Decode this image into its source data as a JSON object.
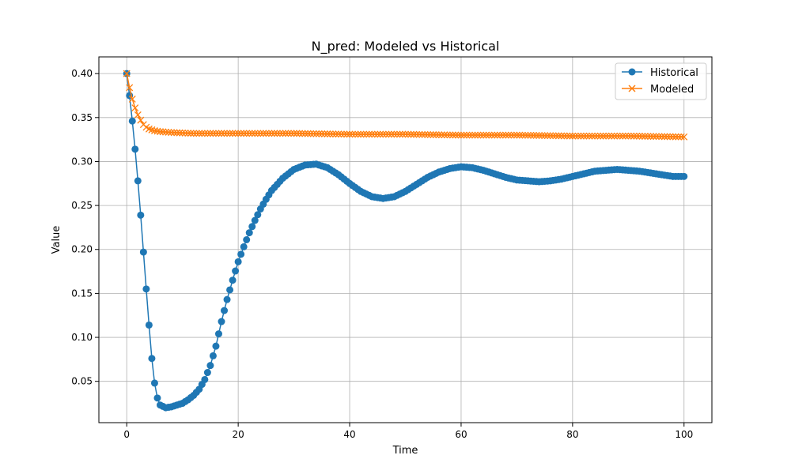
{
  "chart_data": {
    "type": "line",
    "title": "N_pred: Modeled vs Historical",
    "xlabel": "Time",
    "ylabel": "Value",
    "xlim": [
      -5,
      105
    ],
    "ylim": [
      0.003,
      0.419
    ],
    "xticks": [
      0,
      20,
      40,
      60,
      80,
      100
    ],
    "xtick_labels": [
      "0",
      "20",
      "40",
      "60",
      "80",
      "100"
    ],
    "yticks": [
      0.05,
      0.1,
      0.15,
      0.2,
      0.25,
      0.3,
      0.35,
      0.4
    ],
    "ytick_labels": [
      "0.05",
      "0.10",
      "0.15",
      "0.20",
      "0.25",
      "0.30",
      "0.35",
      "0.40"
    ],
    "grid": true,
    "legend_position": "top-right",
    "sample_step": 0.5,
    "series": [
      {
        "name": "Historical",
        "color": "#1f77b4",
        "marker": "circle",
        "anchor_points": [
          [
            0,
            0.4
          ],
          [
            0.5,
            0.375
          ],
          [
            1,
            0.346
          ],
          [
            1.5,
            0.314
          ],
          [
            2,
            0.278
          ],
          [
            2.5,
            0.239
          ],
          [
            3,
            0.197
          ],
          [
            3.5,
            0.155
          ],
          [
            4,
            0.114
          ],
          [
            4.5,
            0.076
          ],
          [
            5,
            0.048
          ],
          [
            5.5,
            0.031
          ],
          [
            6,
            0.023
          ],
          [
            7,
            0.02
          ],
          [
            8,
            0.021
          ],
          [
            9,
            0.023
          ],
          [
            10,
            0.025
          ],
          [
            11,
            0.029
          ],
          [
            12,
            0.034
          ],
          [
            13,
            0.041
          ],
          [
            14,
            0.052
          ],
          [
            15,
            0.068
          ],
          [
            16,
            0.09
          ],
          [
            17,
            0.118
          ],
          [
            18,
            0.143
          ],
          [
            19,
            0.165
          ],
          [
            20,
            0.186
          ],
          [
            21,
            0.203
          ],
          [
            22,
            0.219
          ],
          [
            23,
            0.233
          ],
          [
            24,
            0.246
          ],
          [
            25,
            0.257
          ],
          [
            26,
            0.267
          ],
          [
            28,
            0.281
          ],
          [
            30,
            0.291
          ],
          [
            32,
            0.296
          ],
          [
            34,
            0.297
          ],
          [
            36,
            0.293
          ],
          [
            38,
            0.285
          ],
          [
            40,
            0.275
          ],
          [
            42,
            0.266
          ],
          [
            44,
            0.26
          ],
          [
            46,
            0.258
          ],
          [
            48,
            0.26
          ],
          [
            50,
            0.266
          ],
          [
            52,
            0.274
          ],
          [
            54,
            0.282
          ],
          [
            56,
            0.288
          ],
          [
            58,
            0.292
          ],
          [
            60,
            0.294
          ],
          [
            62,
            0.293
          ],
          [
            64,
            0.29
          ],
          [
            66,
            0.286
          ],
          [
            68,
            0.282
          ],
          [
            70,
            0.279
          ],
          [
            72,
            0.278
          ],
          [
            74,
            0.277
          ],
          [
            76,
            0.278
          ],
          [
            78,
            0.28
          ],
          [
            80,
            0.283
          ],
          [
            82,
            0.286
          ],
          [
            84,
            0.289
          ],
          [
            86,
            0.29
          ],
          [
            88,
            0.291
          ],
          [
            90,
            0.29
          ],
          [
            92,
            0.289
          ],
          [
            94,
            0.287
          ],
          [
            96,
            0.285
          ],
          [
            98,
            0.283
          ],
          [
            100,
            0.283
          ]
        ]
      },
      {
        "name": "Modeled",
        "color": "#ff7f0e",
        "marker": "x",
        "anchor_points": [
          [
            0,
            0.4
          ],
          [
            0.5,
            0.384
          ],
          [
            1,
            0.371
          ],
          [
            1.5,
            0.361
          ],
          [
            2,
            0.353
          ],
          [
            2.5,
            0.347
          ],
          [
            3,
            0.342
          ],
          [
            3.5,
            0.339
          ],
          [
            4,
            0.337
          ],
          [
            5,
            0.335
          ],
          [
            6,
            0.334
          ],
          [
            8,
            0.333
          ],
          [
            12,
            0.332
          ],
          [
            20,
            0.332
          ],
          [
            30,
            0.332
          ],
          [
            40,
            0.331
          ],
          [
            50,
            0.331
          ],
          [
            60,
            0.33
          ],
          [
            70,
            0.33
          ],
          [
            80,
            0.329
          ],
          [
            90,
            0.329
          ],
          [
            100,
            0.328
          ]
        ]
      }
    ]
  }
}
